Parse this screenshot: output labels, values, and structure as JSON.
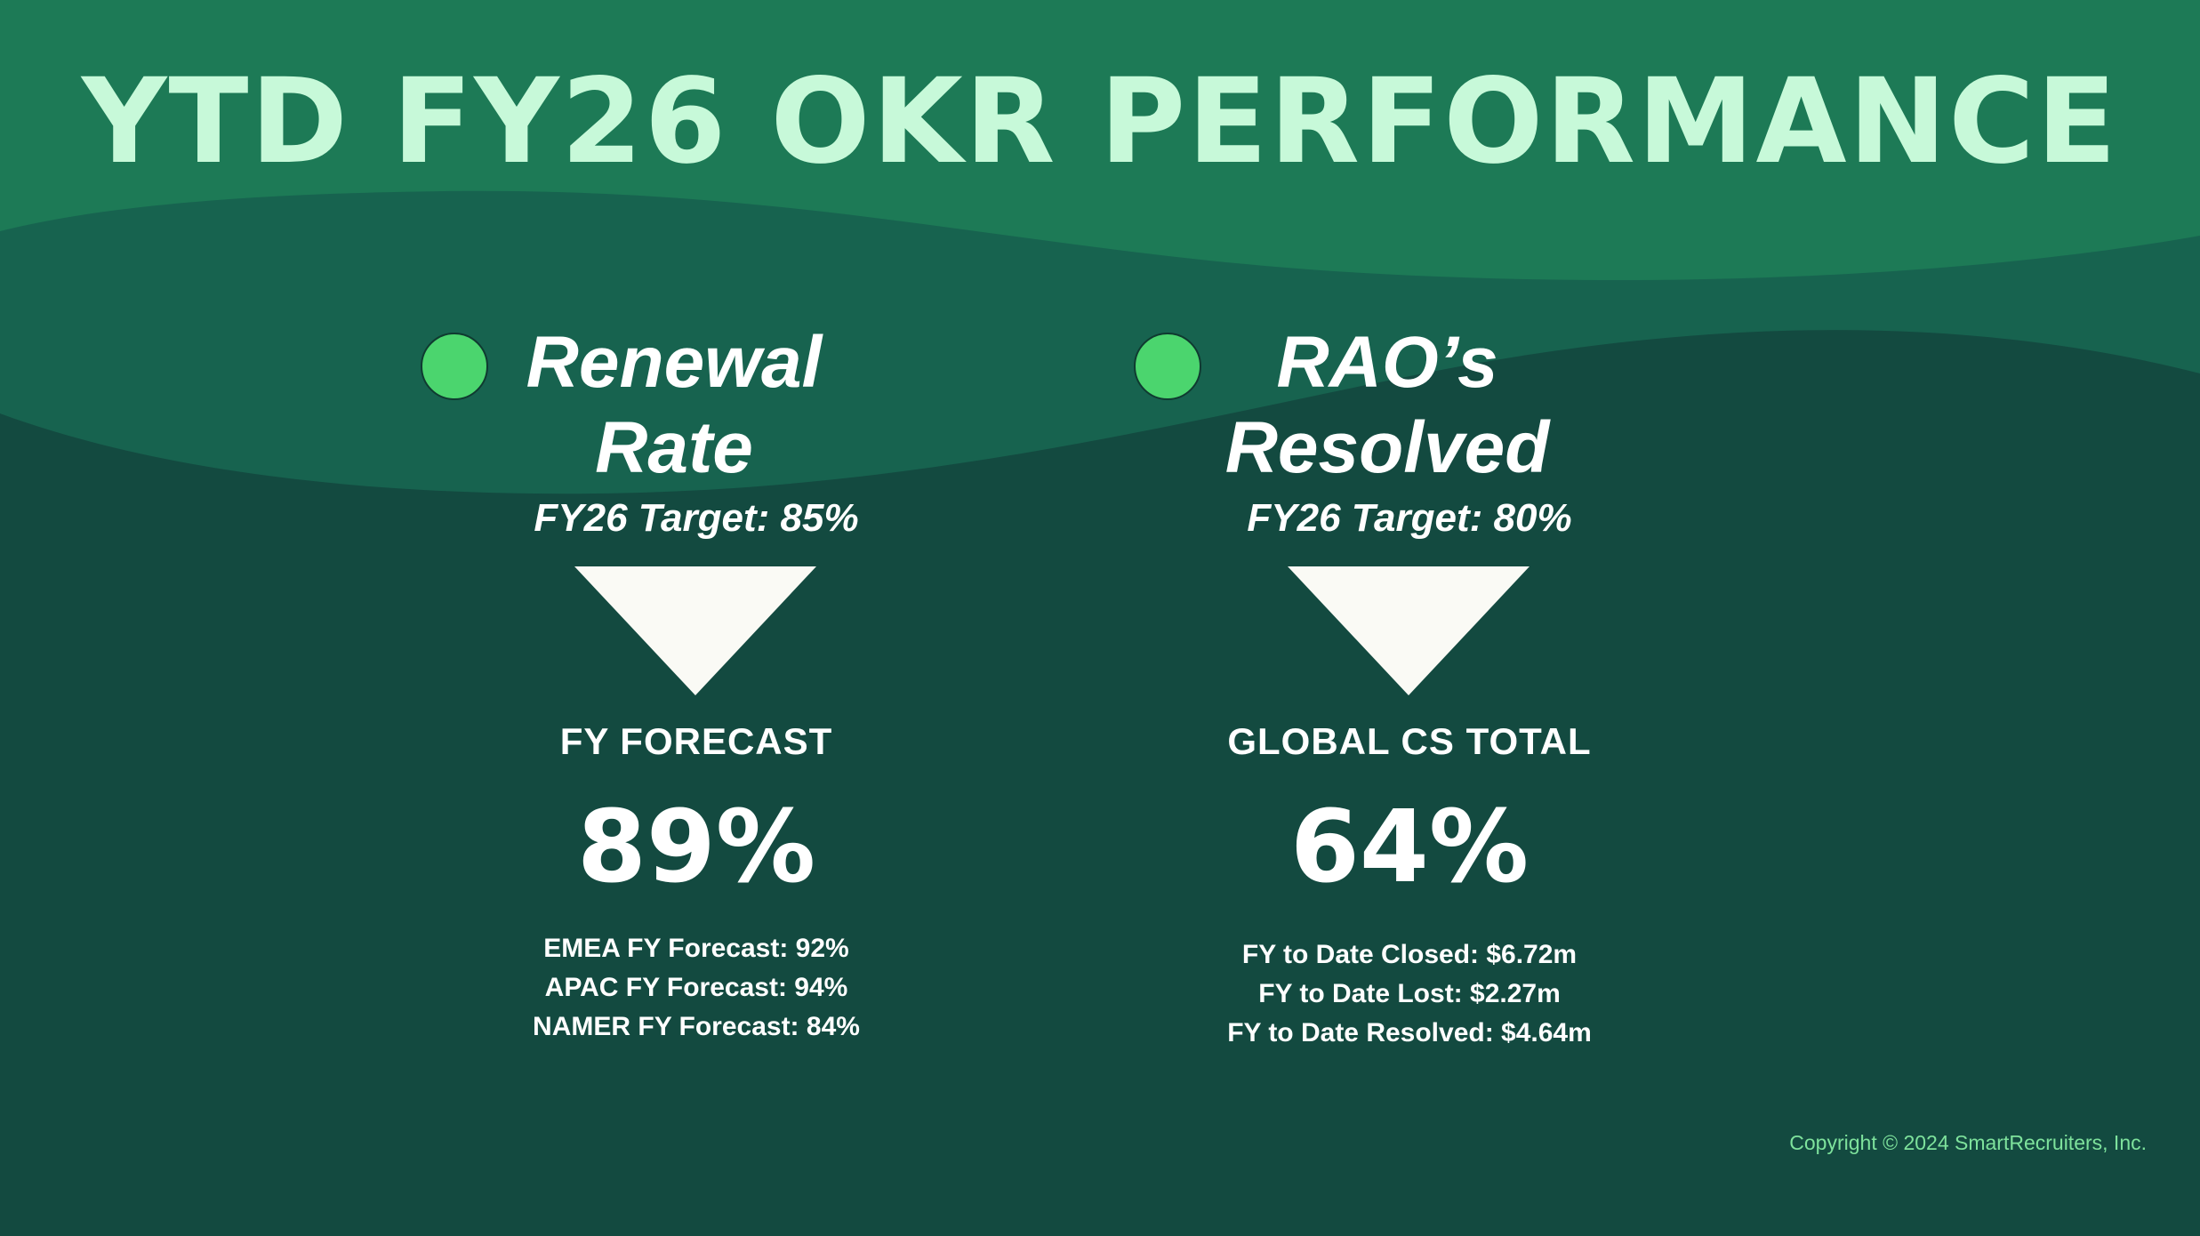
{
  "slide": {
    "title": "YTD FY26 OKR PERFORMANCE",
    "copyright": "Copyright © 2024 SmartRecruiters, Inc."
  },
  "colors": {
    "background": "#134a40",
    "band_top": "#1d7a56",
    "band_mid": "#17634f",
    "title": "#c7f9d9",
    "status_good": "#4bd56e",
    "arrow": "#fafaf5",
    "copyright": "#7ee29c"
  },
  "cards": [
    {
      "name": "Renewal Rate",
      "status": "green",
      "status_icon": "status-dot-icon",
      "target": "FY26 Target: 85%",
      "trend_icon": "triangle-down-icon",
      "metric_label": "FY FORECAST",
      "metric_value": "89%",
      "details": [
        "EMEA FY Forecast: 92%",
        "APAC FY Forecast: 94%",
        "NAMER FY Forecast: 84%"
      ]
    },
    {
      "name": "RAO’s Resolved",
      "status": "green",
      "status_icon": "status-dot-icon",
      "target": "FY26 Target: 80%",
      "trend_icon": "triangle-down-icon",
      "metric_label": "GLOBAL CS TOTAL",
      "metric_value": "64%",
      "details": [
        "FY to Date Closed: $6.72m",
        "FY to Date Lost: $2.27m",
        "FY to Date Resolved: $4.64m"
      ]
    }
  ]
}
